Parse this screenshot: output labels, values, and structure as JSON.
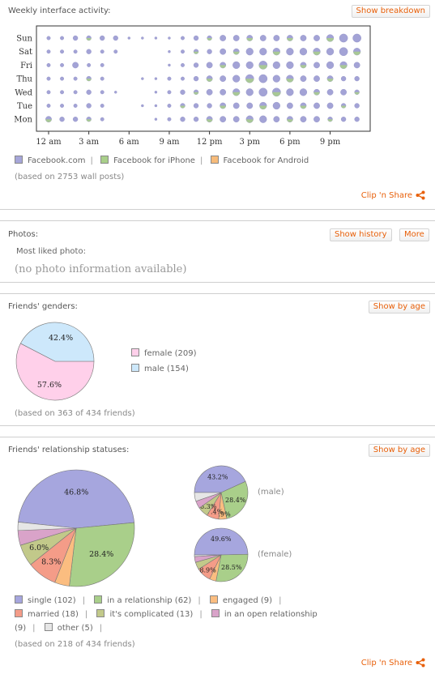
{
  "activity": {
    "title": "Weekly interface activity:",
    "button": "Show breakdown",
    "days": [
      "Sun",
      "Sat",
      "Fri",
      "Thu",
      "Wed",
      "Tue",
      "Mon"
    ],
    "hours": [
      "12 am",
      "3 am",
      "6 am",
      "9 am",
      "12 pm",
      "3 pm",
      "6 pm",
      "9 pm"
    ],
    "legend": [
      "Facebook.com",
      "Facebook for iPhone",
      "Facebook for Android"
    ],
    "legend_colors": [
      "#a6a6d9",
      "#a9cf8a",
      "#f7bb7a"
    ],
    "note": "(based on 2753 wall posts)",
    "clip": "Clip 'n Share"
  },
  "photos": {
    "title": "Photos:",
    "history_button": "Show history",
    "more_button": "More",
    "label": "Most liked photo:",
    "value": "(no photo information available)"
  },
  "genders": {
    "title": "Friends' genders:",
    "button": "Show by age",
    "legend": [
      "female (209)",
      "male (154)"
    ],
    "colors": [
      "#ffd0ea",
      "#cde8fb"
    ],
    "note": "(based on 363 of 434 friends)"
  },
  "relationships": {
    "title": "Friends' relationship statuses:",
    "button": "Show by age",
    "male_label": "(male)",
    "female_label": "(female)",
    "legend_row1": [
      "single (102)",
      "in a relationship (62)",
      "engaged (9)"
    ],
    "legend_row2": [
      "married (18)",
      "it's complicated (13)",
      "in an open relationship"
    ],
    "legend_row3": [
      "(9)",
      "other (5)"
    ],
    "colors": {
      "single": "#a6a6de",
      "relationship": "#a9cf8a",
      "engaged": "#fbbd80",
      "married": "#f49c88",
      "complicated": "#c2c98a",
      "open": "#d9a3c9",
      "other": "#e6e6e6"
    },
    "note": "(based on 218 of 434 friends)",
    "clip": "Clip 'n Share"
  },
  "chart_data": [
    {
      "type": "scatter",
      "title": "Weekly interface activity",
      "xlabel": "",
      "ylabel": "",
      "x_ticks": [
        "12 am",
        "3 am",
        "6 am",
        "9 am",
        "12 pm",
        "3 pm",
        "6 pm",
        "9 pm"
      ],
      "y_categories": [
        "Sun",
        "Sat",
        "Fri",
        "Thu",
        "Wed",
        "Tue",
        "Mon"
      ],
      "encoding": "bubble size ~ activity level per hour (0-10)",
      "sizes": {
        "Sun": [
          2,
          2,
          3,
          3,
          3,
          3,
          1,
          1,
          1,
          1,
          2,
          3,
          3,
          4,
          4,
          4,
          4,
          4,
          4,
          4,
          4,
          5,
          6,
          6
        ],
        "Sat": [
          2,
          2,
          2,
          3,
          2,
          2,
          0,
          0,
          0,
          1,
          2,
          3,
          3,
          4,
          4,
          5,
          5,
          5,
          5,
          5,
          5,
          5,
          6,
          5
        ],
        "Fri": [
          2,
          2,
          4,
          2,
          2,
          0,
          0,
          0,
          0,
          1,
          2,
          3,
          4,
          4,
          5,
          5,
          6,
          5,
          5,
          4,
          4,
          5,
          5,
          4
        ],
        "Thu": [
          2,
          2,
          2,
          3,
          2,
          0,
          0,
          1,
          1,
          2,
          2,
          3,
          4,
          4,
          5,
          6,
          6,
          5,
          5,
          4,
          4,
          4,
          3,
          3
        ],
        "Wed": [
          2,
          2,
          2,
          3,
          2,
          1,
          0,
          0,
          1,
          2,
          3,
          3,
          4,
          4,
          5,
          5,
          6,
          6,
          5,
          5,
          4,
          4,
          4,
          3
        ],
        "Tue": [
          2,
          2,
          2,
          3,
          2,
          0,
          0,
          1,
          1,
          2,
          3,
          3,
          3,
          4,
          4,
          4,
          5,
          5,
          4,
          4,
          4,
          4,
          3,
          3
        ],
        "Mon": [
          4,
          3,
          3,
          3,
          2,
          0,
          0,
          0,
          1,
          2,
          3,
          3,
          4,
          4,
          4,
          5,
          5,
          4,
          4,
          4,
          4,
          3,
          3,
          3
        ]
      }
    },
    {
      "type": "pie",
      "title": "Friends' genders",
      "labels": [
        "female",
        "male"
      ],
      "values": [
        57.6,
        42.4
      ],
      "counts": [
        209,
        154
      ]
    },
    {
      "type": "pie",
      "title": "Friends' relationship statuses",
      "labels": [
        "single",
        "in a relationship",
        "engaged",
        "married",
        "it's complicated",
        "in an open relationship",
        "other"
      ],
      "values": [
        46.8,
        28.4,
        4.1,
        8.3,
        6.0,
        4.1,
        2.3
      ],
      "counts": [
        102,
        62,
        9,
        18,
        13,
        9,
        5
      ],
      "shown_labels": [
        "46.8%",
        "28.4%",
        "",
        "8.3%",
        "6.0%",
        "",
        ""
      ]
    },
    {
      "type": "pie",
      "title": "(male)",
      "labels": [
        "single",
        "in a relationship",
        "engaged",
        "married",
        "it's complicated",
        "in an open relationship",
        "other"
      ],
      "values": [
        43.2,
        28.4,
        4.9,
        7.4,
        6.3,
        4.5,
        5.3
      ],
      "shown_labels": [
        "43.2%",
        "28.4%",
        "4.9%",
        "7.4%",
        "6.3%",
        "",
        ""
      ]
    },
    {
      "type": "pie",
      "title": "(female)",
      "labels": [
        "single",
        "in a relationship",
        "engaged",
        "married",
        "it's complicated",
        "in an open relationship",
        "other"
      ],
      "values": [
        49.6,
        28.5,
        4.0,
        8.9,
        4.5,
        3.5,
        1.0
      ],
      "shown_labels": [
        "49.6%",
        "28.5%",
        "",
        "8.9%",
        "",
        "",
        ""
      ]
    }
  ]
}
